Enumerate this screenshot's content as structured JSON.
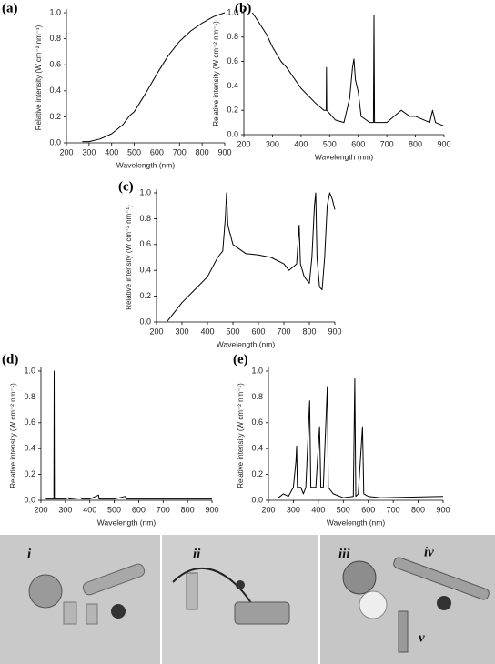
{
  "chart_data": [
    {
      "type": "line",
      "label": "(a)",
      "xlabel": "Wavelength (nm)",
      "ylabel": "Relative intensity (W cm⁻² nm⁻¹)",
      "xlim": [
        200,
        900
      ],
      "xticks": [
        200,
        300,
        400,
        500,
        600,
        700,
        800,
        900
      ],
      "ylim": [
        0,
        1
      ],
      "yticks": [
        {
          "value": 0,
          "label": "0.0"
        },
        0.2,
        0.4,
        0.6,
        0.8,
        {
          "value": 1,
          "label": "1.0"
        }
      ],
      "series": [
        {
          "color": "#000000",
          "x": [
            270,
            300,
            350,
            400,
            450,
            480,
            500,
            550,
            600,
            650,
            700,
            750,
            800,
            850,
            900
          ],
          "values": [
            0.01,
            0.01,
            0.03,
            0.07,
            0.14,
            0.21,
            0.24,
            0.38,
            0.53,
            0.67,
            0.78,
            0.86,
            0.92,
            0.97,
            1.0
          ]
        }
      ]
    },
    {
      "type": "line",
      "label": "(b)",
      "xlabel": "Wavelength (nm)",
      "ylabel": "Relative intensity (W cm⁻² nm⁻¹)",
      "xlim": [
        200,
        900
      ],
      "xticks": [
        200,
        300,
        400,
        500,
        600,
        700,
        800,
        900
      ],
      "ylim": [
        0,
        1
      ],
      "yticks": [
        {
          "value": 0,
          "label": "0.0"
        },
        0.2,
        0.4,
        0.6,
        0.8,
        {
          "value": 1,
          "label": "1.0"
        }
      ],
      "series": [
        {
          "color": "#000000",
          "x": [
            230,
            250,
            280,
            300,
            330,
            350,
            400,
            450,
            480,
            488,
            489,
            490,
            520,
            550,
            570,
            580,
            585,
            590,
            600,
            610,
            640,
            653,
            655,
            657,
            700,
            750,
            780,
            800,
            850,
            860,
            870,
            900
          ],
          "values": [
            1.0,
            0.93,
            0.82,
            0.72,
            0.6,
            0.55,
            0.38,
            0.26,
            0.2,
            0.2,
            0.55,
            0.2,
            0.12,
            0.1,
            0.3,
            0.55,
            0.62,
            0.45,
            0.35,
            0.15,
            0.1,
            0.1,
            0.98,
            0.1,
            0.1,
            0.2,
            0.15,
            0.15,
            0.1,
            0.2,
            0.1,
            0.07
          ]
        }
      ]
    },
    {
      "type": "line",
      "label": "(c)",
      "xlabel": "Wavelength (nm)",
      "ylabel": "Relative intensity (W cm⁻² nm⁻¹)",
      "xlim": [
        200,
        900
      ],
      "xticks": [
        200,
        300,
        400,
        500,
        600,
        700,
        800,
        900
      ],
      "ylim": [
        0,
        1
      ],
      "yticks": [
        {
          "value": 0,
          "label": "0.0"
        },
        0.2,
        0.4,
        0.6,
        0.8,
        {
          "value": 1,
          "label": "1.0"
        }
      ],
      "series": [
        {
          "color": "#000000",
          "x": [
            240,
            260,
            300,
            350,
            400,
            440,
            460,
            470,
            475,
            480,
            500,
            550,
            600,
            650,
            700,
            720,
            750,
            760,
            765,
            780,
            800,
            810,
            820,
            825,
            830,
            840,
            850,
            860,
            870,
            880,
            890,
            900
          ],
          "values": [
            0.0,
            0.05,
            0.15,
            0.25,
            0.35,
            0.5,
            0.55,
            0.8,
            1.0,
            0.75,
            0.6,
            0.53,
            0.52,
            0.5,
            0.45,
            0.4,
            0.45,
            0.75,
            0.45,
            0.35,
            0.3,
            0.5,
            0.9,
            1.0,
            0.5,
            0.27,
            0.25,
            0.5,
            0.9,
            1.0,
            0.95,
            0.87
          ]
        }
      ]
    },
    {
      "type": "line",
      "label": "(d)",
      "xlabel": "Wavelength (nm)",
      "ylabel": "Relative intensity (W cm⁻² nm⁻¹)",
      "xlim": [
        200,
        900
      ],
      "xticks": [
        200,
        300,
        400,
        500,
        600,
        700,
        800,
        900
      ],
      "ylim": [
        0,
        1
      ],
      "yticks": [
        {
          "value": 0,
          "label": "0.0"
        },
        0.2,
        0.4,
        0.6,
        0.8,
        {
          "value": 1,
          "label": "1.0"
        }
      ],
      "series": [
        {
          "color": "#000000",
          "x": [
            220,
            250,
            253,
            254,
            255,
            300,
            313,
            315,
            365,
            367,
            400,
            436,
            438,
            500,
            546,
            548,
            600,
            900
          ],
          "values": [
            0.01,
            0.01,
            0.01,
            1.0,
            0.01,
            0.01,
            0.02,
            0.01,
            0.02,
            0.01,
            0.01,
            0.04,
            0.01,
            0.01,
            0.03,
            0.01,
            0.01,
            0.01
          ]
        }
      ]
    },
    {
      "type": "line",
      "label": "(e)",
      "xlabel": "Wavelength (nm)",
      "ylabel": "Relative intensity (W cm⁻² nm⁻¹)",
      "xlim": [
        200,
        900
      ],
      "xticks": [
        200,
        300,
        400,
        500,
        600,
        700,
        800,
        900
      ],
      "ylim": [
        0,
        1
      ],
      "yticks": [
        {
          "value": 0,
          "label": "0.0"
        },
        0.2,
        0.4,
        0.6,
        0.8,
        {
          "value": 1,
          "label": "1.0"
        }
      ],
      "series": [
        {
          "color": "#000000",
          "x": [
            240,
            260,
            280,
            300,
            310,
            313,
            316,
            330,
            340,
            350,
            365,
            370,
            390,
            405,
            410,
            420,
            436,
            440,
            460,
            500,
            540,
            546,
            550,
            560,
            577,
            582,
            600,
            650,
            900
          ],
          "values": [
            0.02,
            0.05,
            0.03,
            0.1,
            0.3,
            0.42,
            0.1,
            0.1,
            0.05,
            0.1,
            0.77,
            0.1,
            0.1,
            0.57,
            0.1,
            0.1,
            0.88,
            0.1,
            0.05,
            0.02,
            0.03,
            0.94,
            0.03,
            0.05,
            0.57,
            0.05,
            0.03,
            0.02,
            0.03
          ]
        }
      ]
    }
  ],
  "photos": {
    "labels": [
      "i",
      "ii",
      "iii",
      "iv",
      "v"
    ]
  }
}
